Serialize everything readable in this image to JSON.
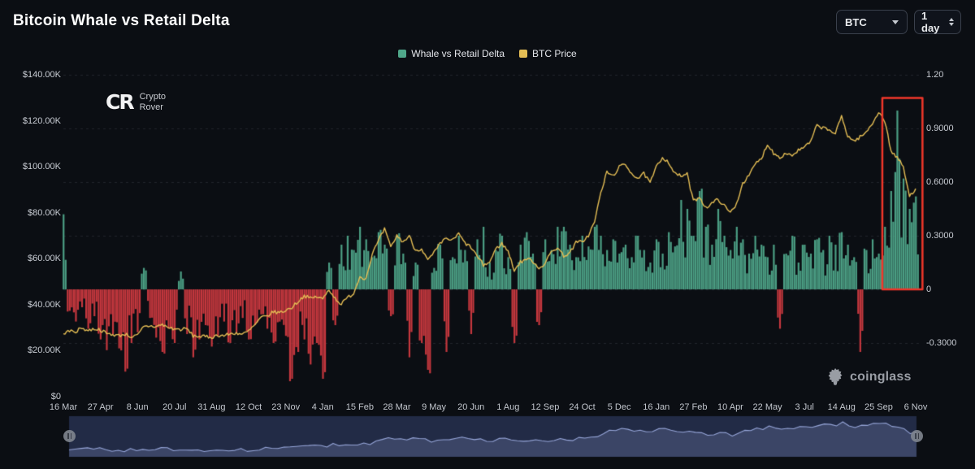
{
  "header": {
    "title": "Bitcoin Whale vs Retail Delta",
    "symbol": "BTC",
    "interval": "1 day"
  },
  "legend": [
    {
      "label": "Whale vs Retail Delta",
      "color": "#4FA78A"
    },
    {
      "label": "BTC Price",
      "color": "#E5BE55"
    }
  ],
  "watermark": {
    "monogram": "CR",
    "name_line1": "Crypto",
    "name_line2": "Rover"
  },
  "brand": {
    "label": "coinglass"
  },
  "chart_data": {
    "type": "bar",
    "title": "Bitcoin Whale vs Retail Delta",
    "legend_position": "top-center",
    "grid": "horizontal-dashed",
    "x_tick_labels": [
      "16 Mar",
      "27 Apr",
      "8 Jun",
      "20 Jul",
      "31 Aug",
      "12 Oct",
      "23 Nov",
      "4 Jan",
      "15 Feb",
      "28 Mar",
      "9 May",
      "20 Jun",
      "1 Aug",
      "12 Sep",
      "24 Oct",
      "5 Dec",
      "16 Jan",
      "27 Feb",
      "10 Apr",
      "22 May",
      "3 Jul",
      "14 Aug",
      "25 Sep",
      "6 Nov"
    ],
    "x_points_per_tick": 6,
    "y_left": {
      "tick_labels": [
        "$140.00K",
        "$120.00K",
        "$100.00K",
        "$80.00K",
        "$60.00K",
        "$40.00K",
        "$20.00K",
        "$0"
      ],
      "min": 0,
      "max": 140000
    },
    "y_right": {
      "tick_labels": [
        "1.20",
        "0.9000",
        "0.6000",
        "0.3000",
        "0",
        "-0.3000"
      ],
      "tick_values": [
        1.2,
        0.9,
        0.6,
        0.3,
        0,
        -0.3
      ],
      "min": -0.45,
      "max": 1.2
    },
    "series": [
      {
        "name": "Whale vs Retail Delta",
        "type": "bar",
        "axis": "right",
        "color_positive": "#4FA78A",
        "color_negative": "#D03A40",
        "values": [
          0.42,
          -0.12,
          -0.18,
          -0.1,
          -0.22,
          -0.15,
          -0.28,
          -0.34,
          -0.25,
          -0.33,
          -0.46,
          -0.3,
          -0.24,
          0.12,
          -0.16,
          -0.27,
          -0.35,
          -0.22,
          -0.3,
          0.1,
          -0.25,
          -0.38,
          -0.28,
          -0.2,
          -0.32,
          -0.26,
          -0.18,
          -0.3,
          -0.24,
          -0.16,
          -0.28,
          -0.2,
          -0.14,
          -0.22,
          -0.3,
          -0.18,
          -0.26,
          -0.5,
          -0.35,
          -0.28,
          -0.42,
          -0.3,
          -0.5,
          0.15,
          -0.2,
          0.25,
          0.3,
          0.22,
          0.35,
          0.28,
          0.18,
          0.32,
          0.25,
          -0.15,
          0.3,
          0.2,
          -0.38,
          0.15,
          -0.3,
          -0.45,
          0.12,
          0.25,
          -0.35,
          0.18,
          0.3,
          0.22,
          -0.25,
          0.28,
          0.35,
          0.15,
          0.22,
          0.3,
          0.18,
          -0.3,
          0.25,
          0.32,
          0.2,
          -0.2,
          0.28,
          0.22,
          0.35,
          0.35,
          0.25,
          0.18,
          0.3,
          0.24,
          0.35,
          0.3,
          0.22,
          0.28,
          0.2,
          0.25,
          0.18,
          0.3,
          0.22,
          0.15,
          0.28,
          0.2,
          0.32,
          0.24,
          0.5,
          0.45,
          0.3,
          0.55,
          0.35,
          0.25,
          0.45,
          0.3,
          0.22,
          0.35,
          0.28,
          0.2,
          0.3,
          0.25,
          0.18,
          0.25,
          -0.22,
          0.2,
          0.3,
          0.15,
          0.25,
          0.2,
          0.28,
          0.22,
          0.3,
          0.25,
          0.32,
          0.25,
          0.18,
          -0.35,
          0.22,
          0.28,
          0.2,
          0.35,
          0.55,
          1.0,
          0.62,
          0.45,
          0.52
        ]
      },
      {
        "name": "BTC Price",
        "type": "line",
        "axis": "left",
        "color": "#E5BE55",
        "values_usd_thousands": [
          27.2,
          28.4,
          28.2,
          29.8,
          28.6,
          29.4,
          28.9,
          27.3,
          26.9,
          26.4,
          27.1,
          25.9,
          26.4,
          30.2,
          30.6,
          30.3,
          31.2,
          29.9,
          29.3,
          29.1,
          29.4,
          26.3,
          26.1,
          25.9,
          25.7,
          26.6,
          26.4,
          27.1,
          27.6,
          26.9,
          28.4,
          31.0,
          34.2,
          34.9,
          36.8,
          36.4,
          37.4,
          38.7,
          41.3,
          43.8,
          42.6,
          43.4,
          42.3,
          46.6,
          42.6,
          40.1,
          42.9,
          44.9,
          52.1,
          51.3,
          61.9,
          67.5,
          72.8,
          64.9,
          69.9,
          67.2,
          69.8,
          63.5,
          64.3,
          59.1,
          62.4,
          66.3,
          68.9,
          67.8,
          70.8,
          66.7,
          64.9,
          60.9,
          57.1,
          58.3,
          64.1,
          66.5,
          63.2,
          54.9,
          58.4,
          59.9,
          58.9,
          55.8,
          57.9,
          62.9,
          64.8,
          61.2,
          62.4,
          66.9,
          67.4,
          69.9,
          75.9,
          88.4,
          97.6,
          95.9,
          99.9,
          100.9,
          97.2,
          94.9,
          96.9,
          92.9,
          99.8,
          104.1,
          101.9,
          96.9,
          95.9,
          96.7,
          84.9,
          86.9,
          82.1,
          83.9,
          85.9,
          82.9,
          79.9,
          83.9,
          92.9,
          95.9,
          101.1,
          103.4,
          109.9,
          105.9,
          104.1,
          105.9,
          104.9,
          107.1,
          108.4,
          110.9,
          117.9,
          116.9,
          115.9,
          114.4,
          121.9,
          113.4,
          111.1,
          112.9,
          114.9,
          118.9,
          123.9,
          119.9,
          106.9,
          103.9,
          99.9,
          86.9,
          90.4
        ]
      }
    ],
    "highlight_box": {
      "color": "#F0372A",
      "from_point": 132.6,
      "to_point": 139.1,
      "value_top": 1.07,
      "value_bottom": 0
    },
    "navigator": {
      "type": "area",
      "series_ref": "BTC Price"
    }
  },
  "render_hints": {
    "seed": 7,
    "bar_subdivisions": 3,
    "line_segments_per_point": 4,
    "bar_jitter_base": 0.35,
    "bar_jitter_span": 0.7,
    "line_jitter_k": 1.5
  }
}
